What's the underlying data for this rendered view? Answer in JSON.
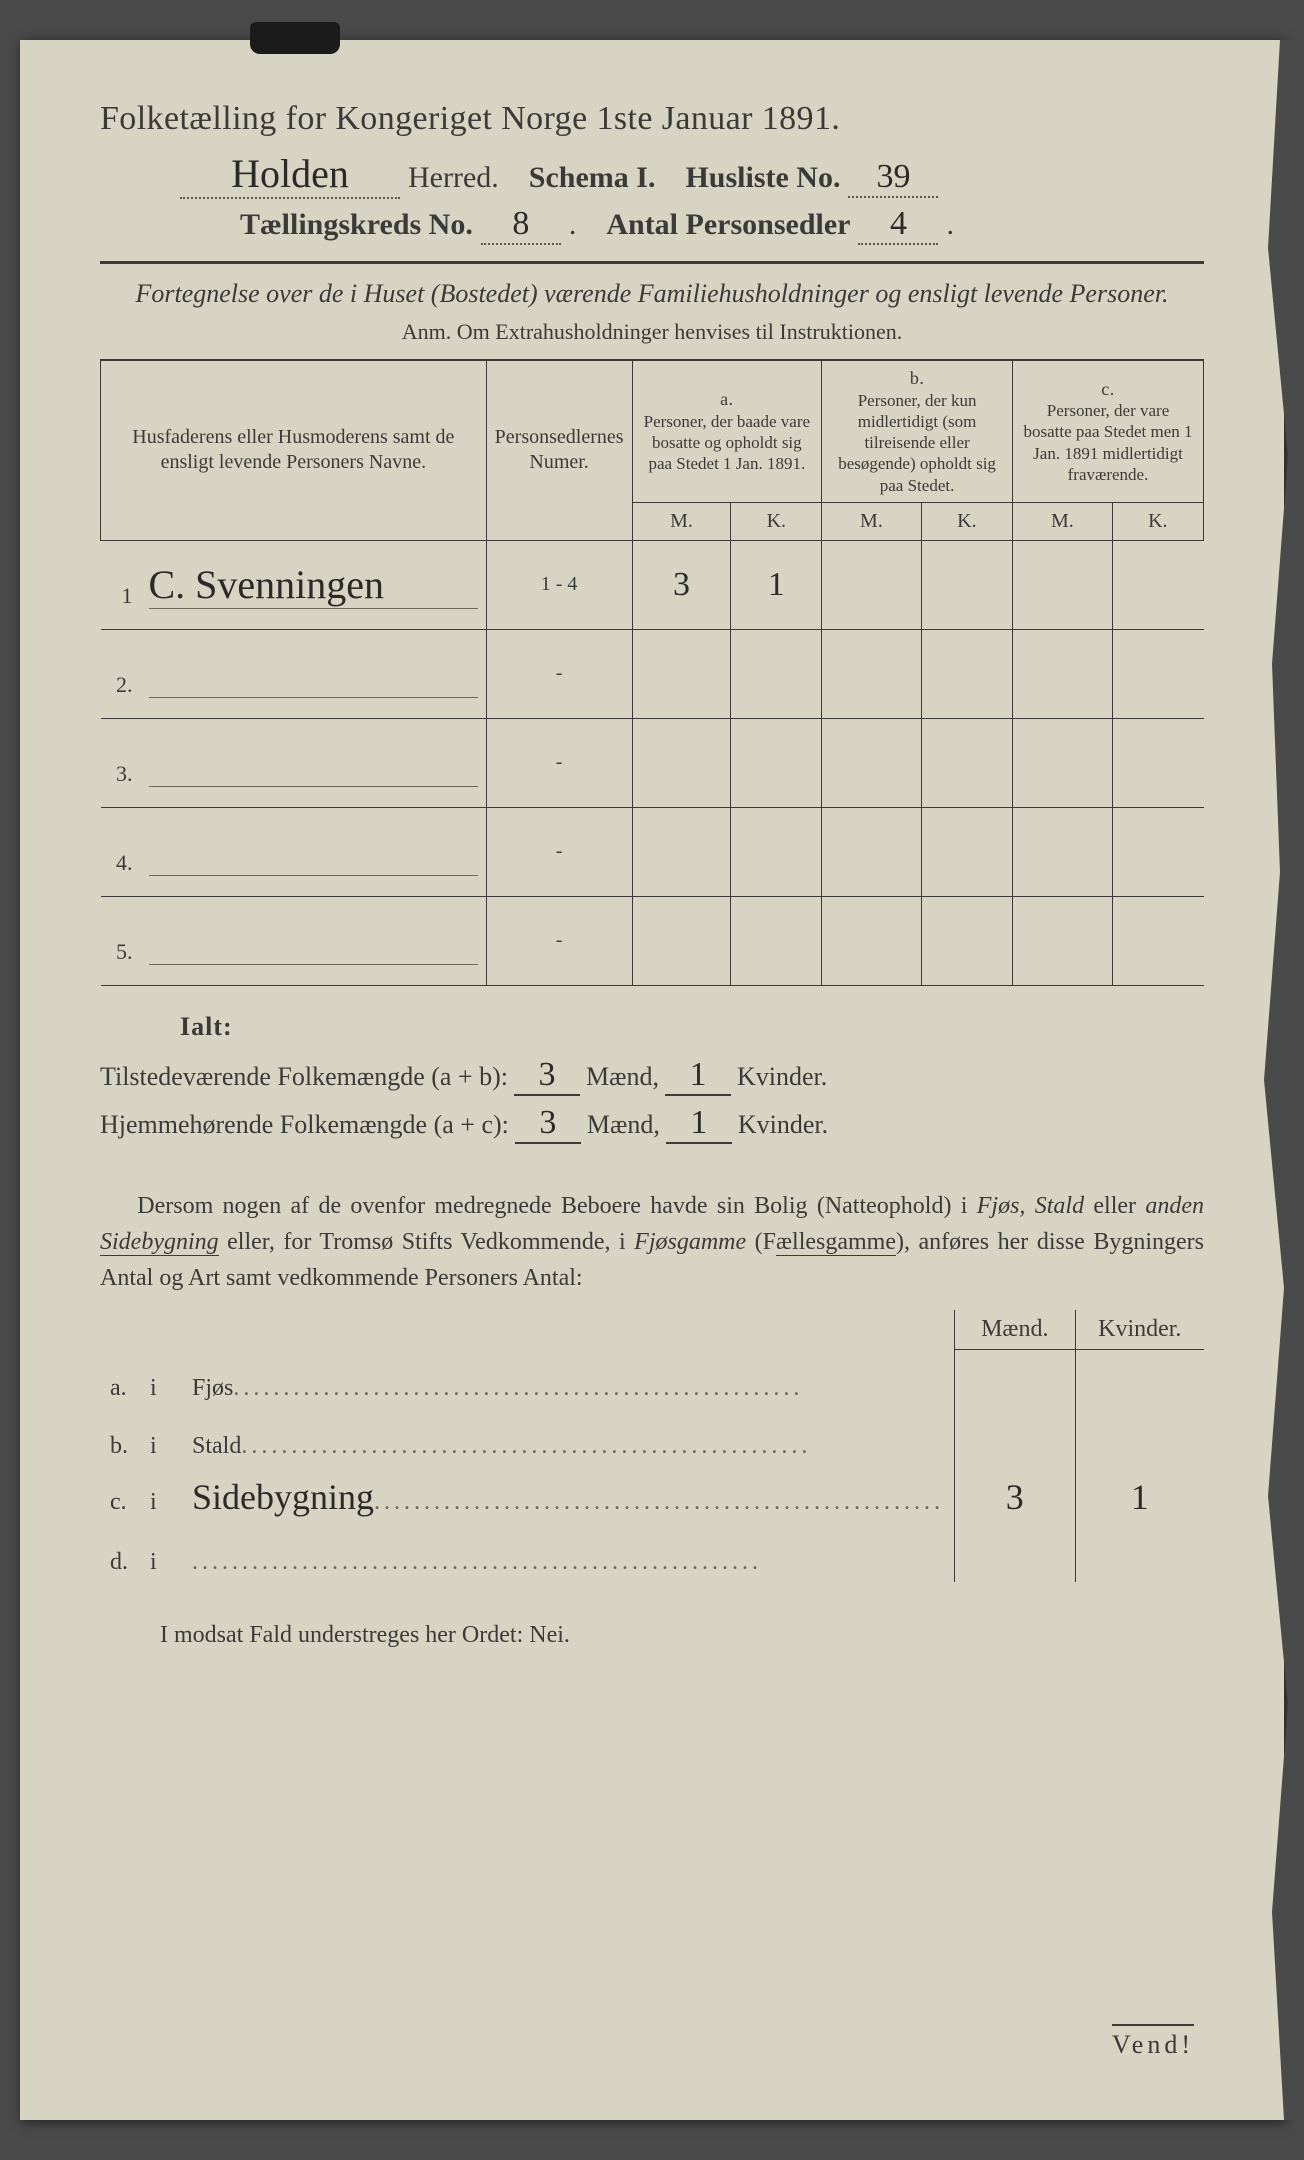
{
  "colors": {
    "paper": "#d8d4c4",
    "ink": "#3a3a38",
    "scriptInk": "#2a2a28",
    "background": "#4a4a4a",
    "dotted": "#5a5a50"
  },
  "typography": {
    "base_family": "Times New Roman / Georgia serif",
    "script_family": "Brush Script / Lucida Handwriting cursive",
    "title_pt": 34,
    "header_pt": 30,
    "body_pt": 24,
    "table_pt": 20
  },
  "title": "Folketælling for Kongeriget Norge 1ste Januar 1891.",
  "header": {
    "herred_value": "Holden",
    "herred_label": "Herred.",
    "schema_label": "Schema I.",
    "husliste_label": "Husliste No.",
    "husliste_value": "39",
    "kreds_label": "Tællingskreds No.",
    "kreds_value": "8",
    "antal_label": "Antal Personsedler",
    "antal_value": "4"
  },
  "subtitle": "Fortegnelse over de i Huset (Bostedet) værende Familiehusholdninger og ensligt levende Personer.",
  "anm": "Anm. Om Extrahusholdninger henvises til Instruktionen.",
  "table": {
    "col_names": "Husfaderens eller Husmoderens samt de ensligt levende Personers Navne.",
    "col_numer": "Personsedlernes Numer.",
    "col_a_tag": "a.",
    "col_a": "Personer, der baade vare bosatte og opholdt sig paa Stedet 1 Jan. 1891.",
    "col_b_tag": "b.",
    "col_b": "Personer, der kun midlertidigt (som tilreisende eller besøgende) opholdt sig paa Stedet.",
    "col_c_tag": "c.",
    "col_c": "Personer, der vare bosatte paa Stedet men 1 Jan. 1891 midlertidigt fraværende.",
    "m": "M.",
    "k": "K.",
    "rows": [
      {
        "n": "1",
        "name": "C. Svenningen",
        "numer": "1 - 4",
        "aM": "3",
        "aK": "1",
        "bM": "",
        "bK": "",
        "cM": "",
        "cK": ""
      },
      {
        "n": "2.",
        "name": "",
        "numer": "-",
        "aM": "",
        "aK": "",
        "bM": "",
        "bK": "",
        "cM": "",
        "cK": ""
      },
      {
        "n": "3.",
        "name": "",
        "numer": "-",
        "aM": "",
        "aK": "",
        "bM": "",
        "bK": "",
        "cM": "",
        "cK": ""
      },
      {
        "n": "4.",
        "name": "",
        "numer": "-",
        "aM": "",
        "aK": "",
        "bM": "",
        "bK": "",
        "cM": "",
        "cK": ""
      },
      {
        "n": "5.",
        "name": "",
        "numer": "-",
        "aM": "",
        "aK": "",
        "bM": "",
        "bK": "",
        "cM": "",
        "cK": ""
      }
    ]
  },
  "totals": {
    "ialt": "Ialt:",
    "line1_label": "Tilstedeværende Folkemængde (a + b):",
    "line1_m": "3",
    "line1_k": "1",
    "line2_label": "Hjemmehørende Folkemængde (a + c):",
    "line2_m": "3",
    "line2_k": "1",
    "maend": "Mænd,",
    "kvinder": "Kvinder."
  },
  "paragraph": "Dersom nogen af de ovenfor medregnede Beboere havde sin Bolig (Natteophold) i Fjøs, Stald eller anden Sidebygning eller, for Tromsø Stifts Vedkommende, i Fjøsgamme (Fællesgamme), anføres her disse Bygningers Antal og Art samt vedkommende Personers Antal:",
  "subtable": {
    "head_m": "Mænd.",
    "head_k": "Kvinder.",
    "rows": [
      {
        "tag": "a.",
        "i": "i",
        "label": "Fjøs",
        "script": "",
        "m": "",
        "k": ""
      },
      {
        "tag": "b.",
        "i": "i",
        "label": "Stald",
        "script": "",
        "m": "",
        "k": ""
      },
      {
        "tag": "c.",
        "i": "i",
        "label": "",
        "script": "Sidebygning",
        "m": "3",
        "k": "1"
      },
      {
        "tag": "d.",
        "i": "i",
        "label": "",
        "script": "",
        "m": "",
        "k": ""
      }
    ]
  },
  "footer": "I modsat Fald understreges her Ordet: Nei.",
  "vend": "Vend!"
}
